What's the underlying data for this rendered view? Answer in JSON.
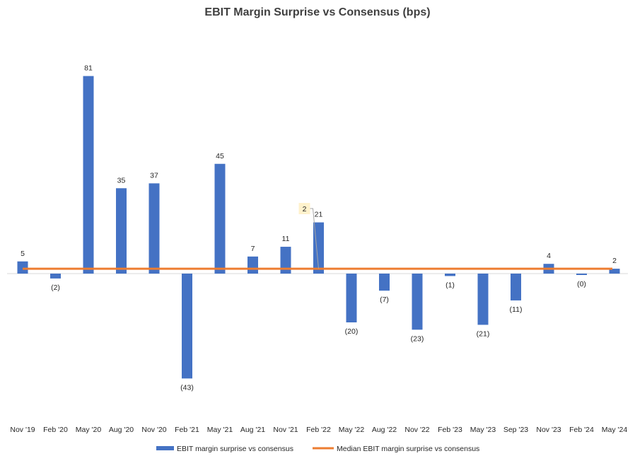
{
  "chart_data": {
    "type": "bar",
    "title": "EBIT Margin Surprise vs Consensus (bps)",
    "xlabel": "",
    "ylabel": "",
    "categories": [
      "Nov '19",
      "Feb '20",
      "May '20",
      "Aug '20",
      "Nov '20",
      "Feb '21",
      "May '21",
      "Aug '21",
      "Nov '21",
      "Feb '22",
      "May '22",
      "Aug '22",
      "Nov '22",
      "Feb '23",
      "May '23",
      "Sep '23",
      "Nov '23",
      "Feb '24",
      "May '24"
    ],
    "series": [
      {
        "name": "EBIT margin surprise vs consensus",
        "type": "bar",
        "color": "#4472C4",
        "values": [
          5,
          -2,
          81,
          35,
          37,
          -43,
          45,
          7,
          11,
          21,
          -20,
          -7,
          -23,
          -1,
          -21,
          -11,
          4,
          -0.3,
          2
        ],
        "data_labels": [
          "5",
          "(2)",
          "81",
          "35",
          "37",
          "(43)",
          "45",
          "7",
          "11",
          "21",
          "(20)",
          "(7)",
          "(23)",
          "(1)",
          "(21)",
          "(11)",
          "4",
          "(0)",
          "2"
        ]
      },
      {
        "name": "Median EBIT margin surprise vs consensus",
        "type": "line",
        "color": "#ED7D31",
        "value": 2
      }
    ],
    "callout": {
      "text": "2",
      "category": "Feb '22"
    },
    "ylim": [
      -57,
      100
    ],
    "grid": false,
    "legend": "bottom"
  }
}
